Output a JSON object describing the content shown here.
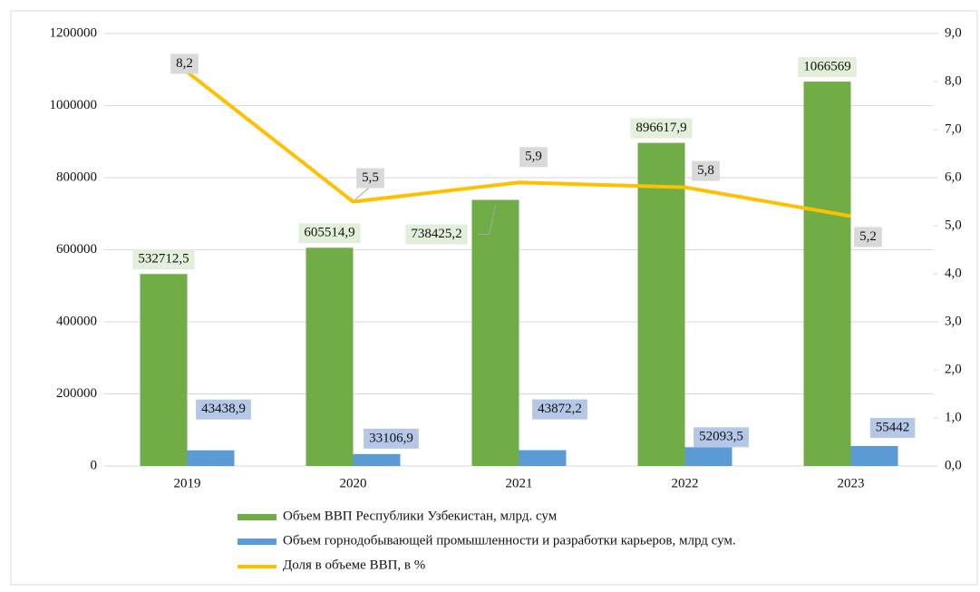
{
  "chart_data": {
    "type": "bar-line",
    "categories": [
      "2019",
      "2020",
      "2021",
      "2022",
      "2023"
    ],
    "series": [
      {
        "name": "Объем ВВП Республики Узбекистан, млрд. сум",
        "type": "bar",
        "color": "#70ad47",
        "values": [
          532712.5,
          605514.9,
          738425.2,
          896617.9,
          1066569
        ],
        "value_labels": [
          "532712,5",
          "605514,9",
          "738425,2",
          "896617,9",
          "1066569"
        ]
      },
      {
        "name": "Объем горнодобывающей промышленности и разработки карьеров, млрд сум.",
        "type": "bar",
        "color": "#5b9bd5",
        "values": [
          43438.9,
          33106.9,
          43872.2,
          52093.5,
          55442
        ],
        "value_labels": [
          "43438,9",
          "33106,9",
          "43872,2",
          "52093,5",
          "55442"
        ]
      },
      {
        "name": "Доля в объеме ВВП, в %",
        "type": "line",
        "axis": "y2",
        "color": "#ffc000",
        "values": [
          8.2,
          5.5,
          5.9,
          5.8,
          5.2
        ],
        "value_labels": [
          "8,2",
          "5,5",
          "5,9",
          "5,8",
          "5,2"
        ]
      }
    ],
    "ylim": [
      0,
      1200000
    ],
    "yticks": [
      0,
      200000,
      400000,
      600000,
      800000,
      1000000,
      1200000
    ],
    "y2lim": [
      0,
      9
    ],
    "y2ticks": [
      {
        "value": 0,
        "label": "0,0"
      },
      {
        "value": 1,
        "label": "1,0"
      },
      {
        "value": 2,
        "label": "2,0"
      },
      {
        "value": 3,
        "label": "3,0"
      },
      {
        "value": 4,
        "label": "4,0"
      },
      {
        "value": 5,
        "label": "5,0"
      },
      {
        "value": 6,
        "label": "6,0"
      },
      {
        "value": 7,
        "label": "7,0"
      },
      {
        "value": 8,
        "label": "8,0"
      },
      {
        "value": 9,
        "label": "9,0"
      }
    ],
    "grid": true
  }
}
